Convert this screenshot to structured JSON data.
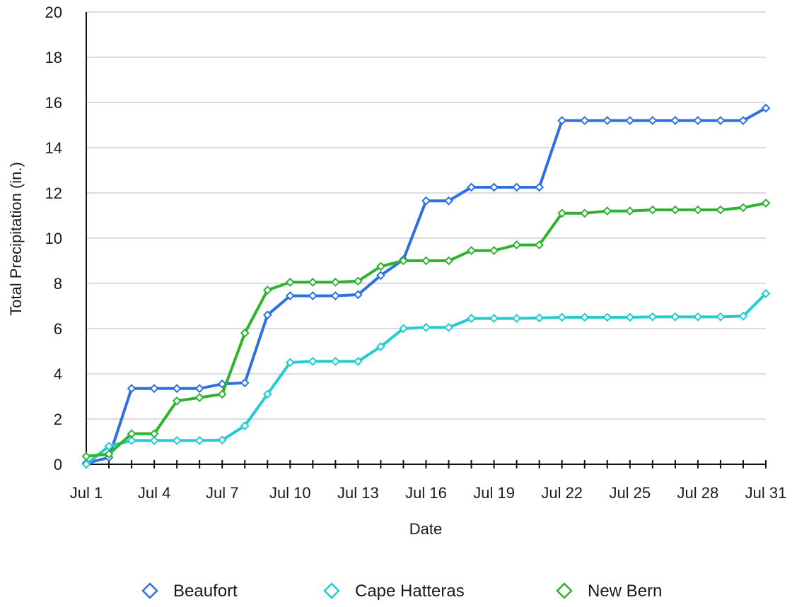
{
  "chart_data": {
    "type": "line",
    "title": "",
    "xlabel": "Date",
    "ylabel": "Total Precipitation (in.)",
    "ylim": [
      0,
      20
    ],
    "yticks": [
      0,
      2,
      4,
      6,
      8,
      10,
      12,
      14,
      16,
      18,
      20
    ],
    "grid": "horizontal",
    "legend_position": "bottom",
    "x": [
      "Jul 1",
      "Jul 2",
      "Jul 3",
      "Jul 4",
      "Jul 5",
      "Jul 6",
      "Jul 7",
      "Jul 8",
      "Jul 9",
      "Jul 10",
      "Jul 11",
      "Jul 12",
      "Jul 13",
      "Jul 14",
      "Jul 15",
      "Jul 16",
      "Jul 17",
      "Jul 18",
      "Jul 19",
      "Jul 20",
      "Jul 21",
      "Jul 22",
      "Jul 23",
      "Jul 24",
      "Jul 25",
      "Jul 26",
      "Jul 27",
      "Jul 28",
      "Jul 29",
      "Jul 30",
      "Jul 31"
    ],
    "xtick_labels": [
      "Jul 1",
      "Jul 4",
      "Jul 7",
      "Jul 10",
      "Jul 13",
      "Jul 16",
      "Jul 19",
      "Jul 22",
      "Jul 25",
      "Jul 28",
      "Jul 31"
    ],
    "series": [
      {
        "name": "Beaufort",
        "color": "#2f6fe4",
        "values": [
          0.05,
          0.3,
          3.35,
          3.35,
          3.35,
          3.35,
          3.55,
          3.6,
          6.6,
          7.45,
          7.45,
          7.45,
          7.5,
          8.35,
          9.05,
          11.65,
          11.65,
          12.25,
          12.25,
          12.25,
          12.25,
          15.2,
          15.2,
          15.2,
          15.2,
          15.2,
          15.2,
          15.2,
          15.2,
          15.2,
          15.75
        ]
      },
      {
        "name": "Cape Hatteras",
        "color": "#22ccd0",
        "values": [
          0.0,
          0.8,
          1.05,
          1.05,
          1.05,
          1.05,
          1.07,
          1.7,
          3.1,
          4.5,
          4.55,
          4.55,
          4.55,
          5.2,
          6.0,
          6.05,
          6.05,
          6.45,
          6.45,
          6.45,
          6.47,
          6.5,
          6.5,
          6.5,
          6.5,
          6.52,
          6.52,
          6.52,
          6.52,
          6.55,
          7.55
        ]
      },
      {
        "name": "New Bern",
        "color": "#2eb32e",
        "values": [
          0.35,
          0.45,
          1.35,
          1.35,
          2.8,
          2.95,
          3.1,
          5.8,
          7.7,
          8.05,
          8.05,
          8.05,
          8.1,
          8.75,
          9.0,
          9.0,
          9.0,
          9.45,
          9.45,
          9.7,
          9.7,
          11.1,
          11.1,
          11.2,
          11.2,
          11.25,
          11.25,
          11.25,
          11.25,
          11.35,
          11.55
        ]
      }
    ]
  }
}
